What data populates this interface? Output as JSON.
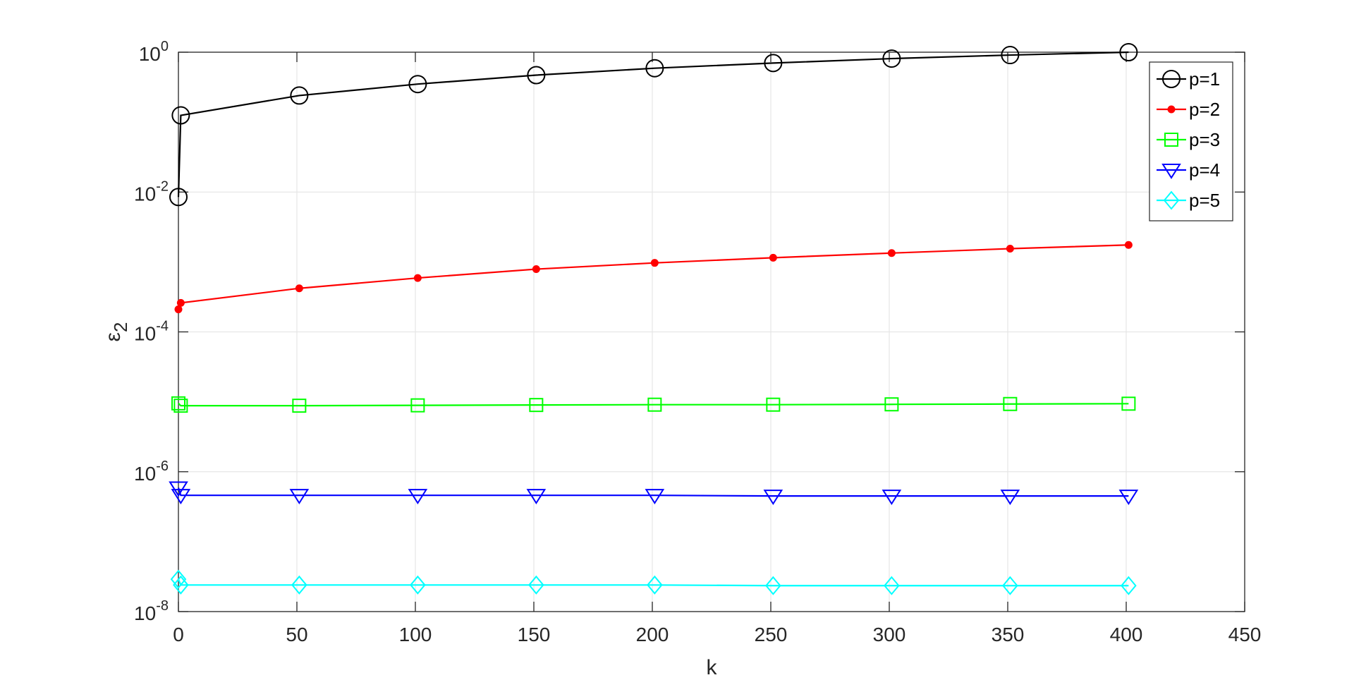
{
  "chart_data": {
    "type": "line",
    "xlabel": "k",
    "ylabel_symbol": "ε",
    "ylabel_subscript": "2",
    "xlim": [
      0,
      450
    ],
    "ylim": [
      1e-08,
      1
    ],
    "yscale": "log",
    "grid": true,
    "legend_position": "top-right",
    "x_ticks": [
      0,
      50,
      100,
      150,
      200,
      250,
      300,
      350,
      400,
      450
    ],
    "x_tick_labels": [
      "0",
      "50",
      "100",
      "150",
      "200",
      "250",
      "300",
      "350",
      "400",
      "450"
    ],
    "y_ticks": [
      1e-08,
      1e-06,
      0.0001,
      0.01,
      1
    ],
    "y_tick_labels": [
      {
        "base": "10",
        "exp": "-8"
      },
      {
        "base": "10",
        "exp": "-6"
      },
      {
        "base": "10",
        "exp": "-4"
      },
      {
        "base": "10",
        "exp": "-2"
      },
      {
        "base": "10",
        "exp": "0"
      }
    ],
    "x": [
      0,
      1,
      51,
      101,
      151,
      201,
      251,
      301,
      351,
      401
    ],
    "series": [
      {
        "name": "p=1",
        "color": "#000000",
        "marker": "circle",
        "values": [
          0.0085,
          0.125,
          0.24,
          0.35,
          0.47,
          0.59,
          0.7,
          0.81,
          0.91,
          1.0
        ]
      },
      {
        "name": "p=2",
        "color": "#ff0000",
        "marker": "dot",
        "values": [
          0.00021,
          0.00026,
          0.00042,
          0.00059,
          0.00079,
          0.00097,
          0.00115,
          0.00134,
          0.00155,
          0.00175
        ]
      },
      {
        "name": "p=3",
        "color": "#00ff00",
        "marker": "square",
        "values": [
          9.5e-06,
          8.8e-06,
          8.8e-06,
          8.9e-06,
          9e-06,
          9.1e-06,
          9.1e-06,
          9.2e-06,
          9.3e-06,
          9.4e-06
        ]
      },
      {
        "name": "p=4",
        "color": "#0000ff",
        "marker": "triangle-down",
        "values": [
          5.9e-07,
          4.6e-07,
          4.6e-07,
          4.6e-07,
          4.6e-07,
          4.6e-07,
          4.5e-07,
          4.5e-07,
          4.5e-07,
          4.5e-07
        ]
      },
      {
        "name": "p=5",
        "color": "#00ffff",
        "marker": "diamond",
        "values": [
          2.9e-08,
          2.4e-08,
          2.4e-08,
          2.4e-08,
          2.4e-08,
          2.4e-08,
          2.35e-08,
          2.35e-08,
          2.35e-08,
          2.35e-08
        ]
      }
    ]
  }
}
